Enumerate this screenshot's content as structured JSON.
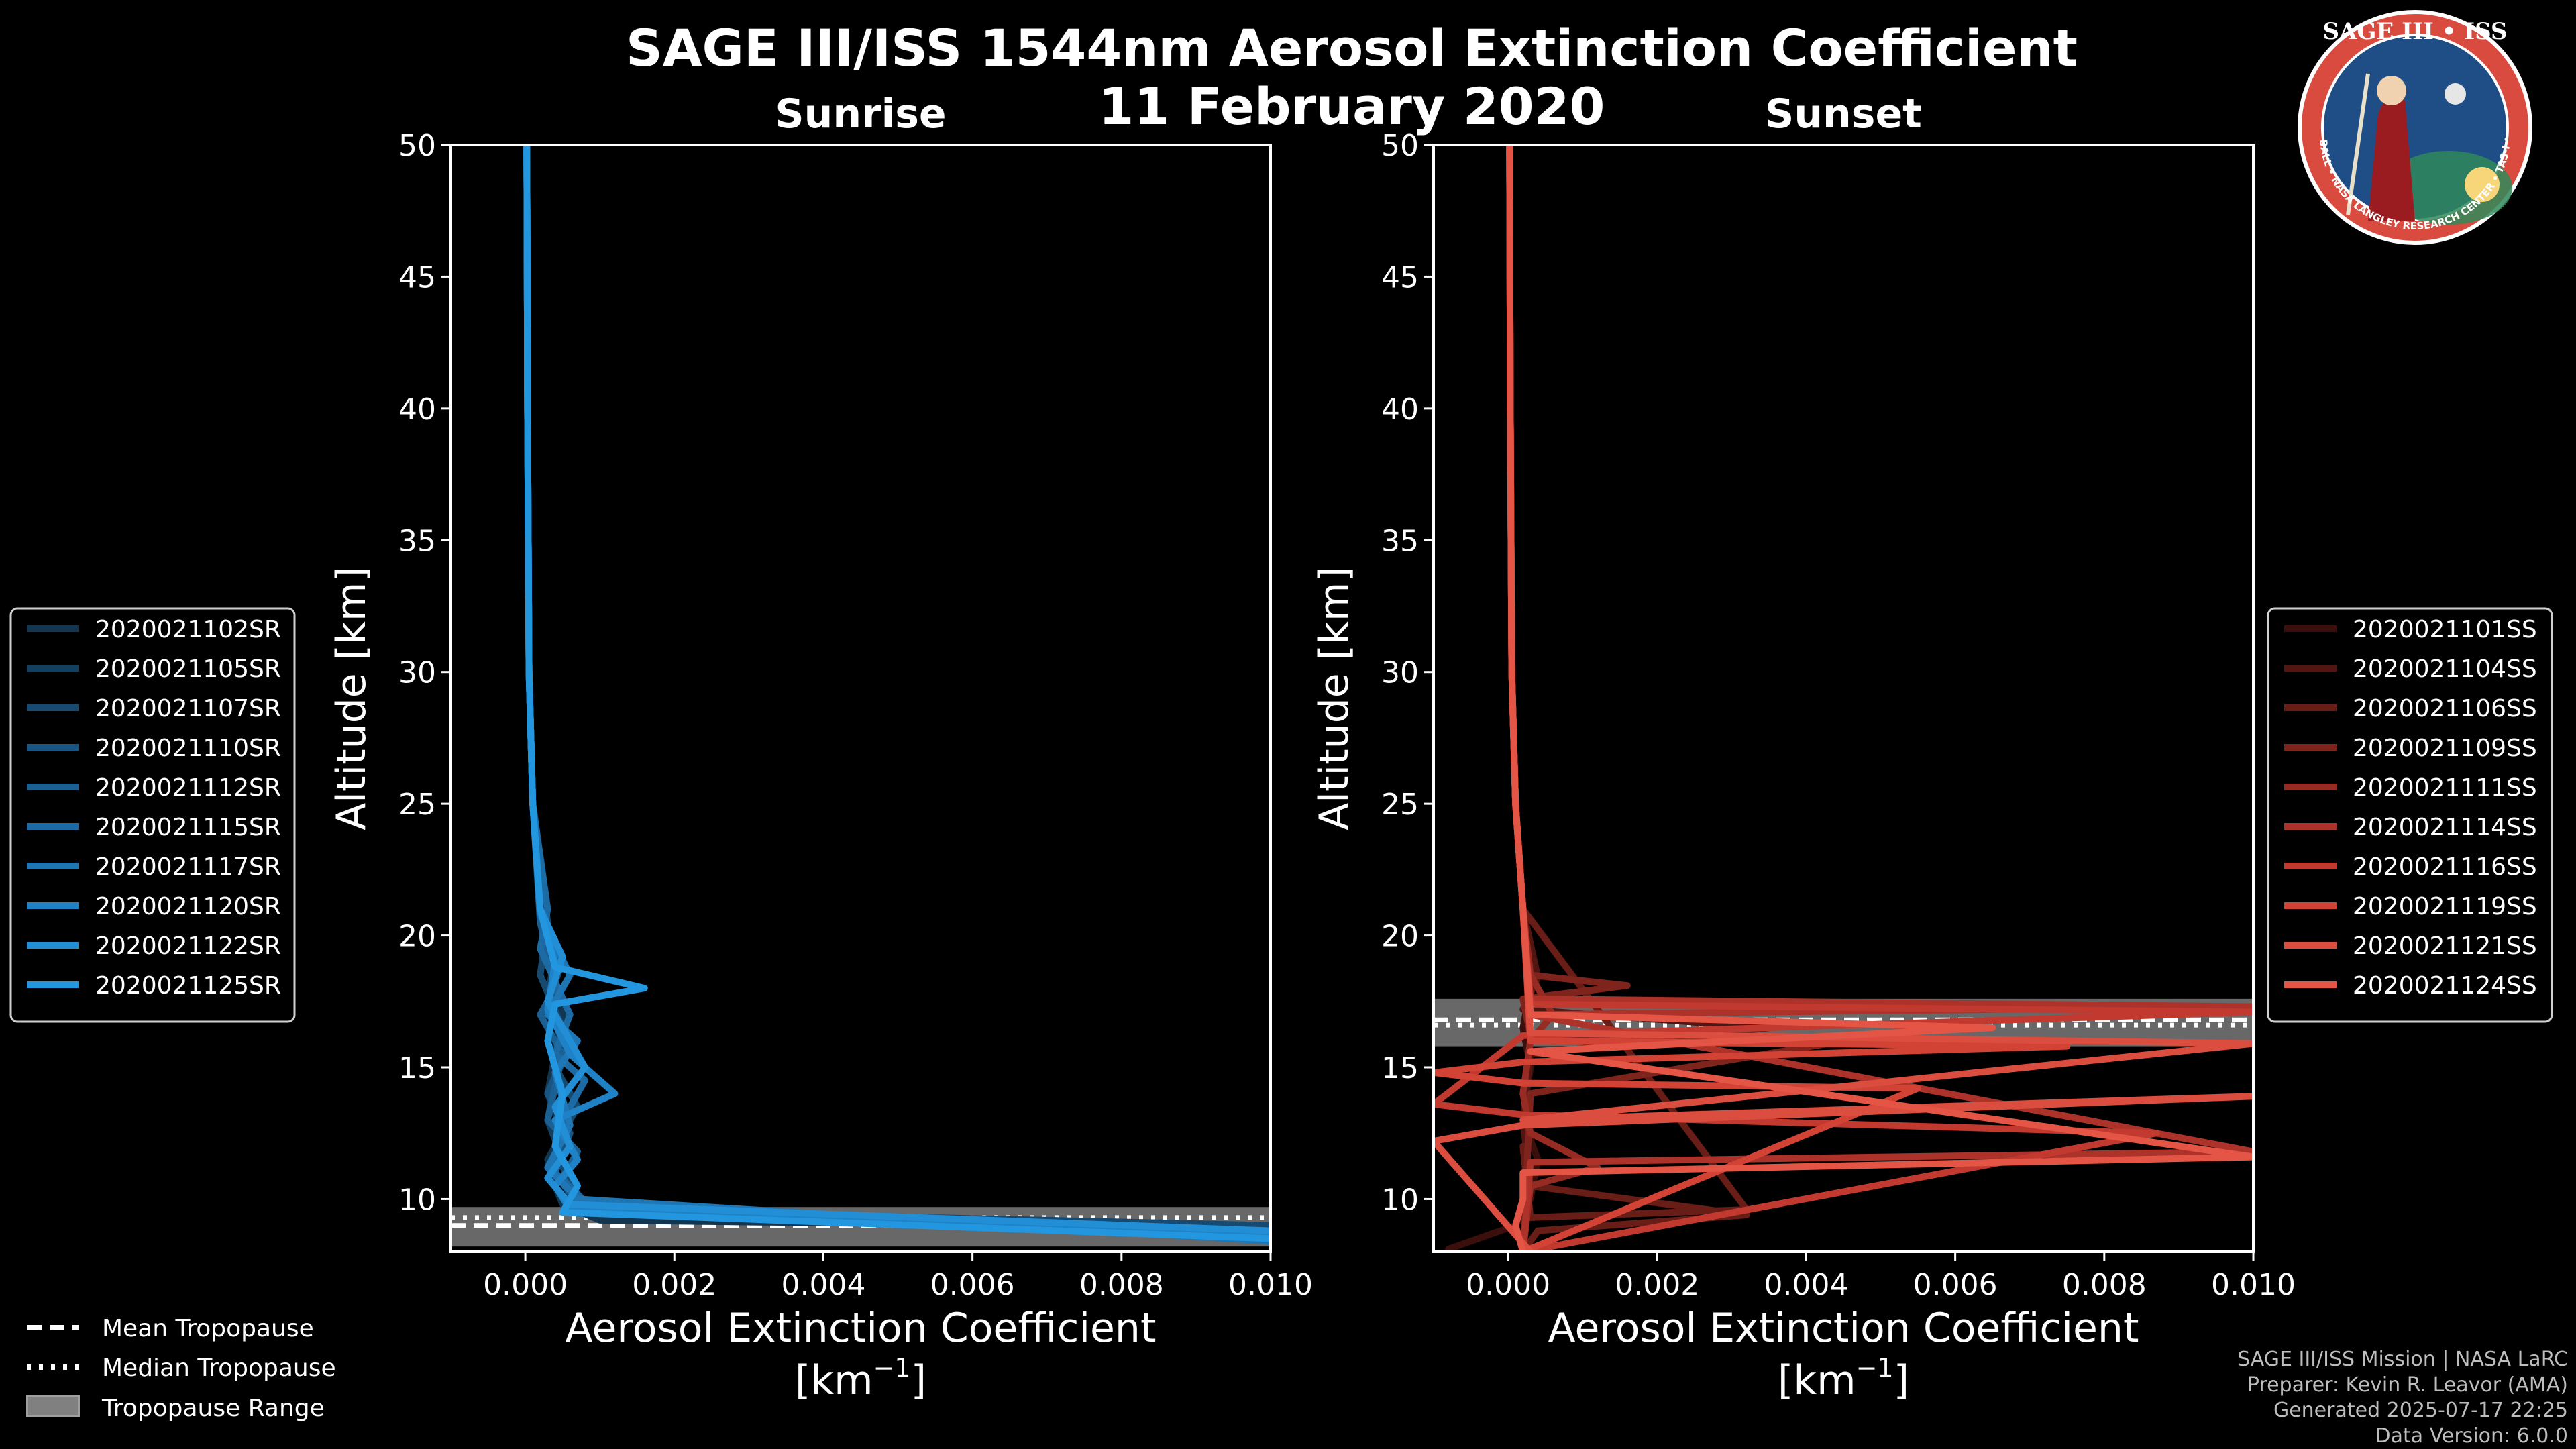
{
  "title": {
    "line1": "SAGE III/ISS 1544nm Aerosol Extinction Coefficient",
    "line2": "11 February 2020"
  },
  "logo": {
    "text": "SAGE III • ISS",
    "ring_text": "BALL • NASA LANGLEY RESEARCH CENTER • TAS-I • ESA",
    "colors": {
      "ring": "#d94a3f",
      "inner": "#1f4e86",
      "text": "#ffffff"
    }
  },
  "credits": [
    "SAGE III/ISS Mission | NASA LaRC",
    "Preparer: Kevin R. Leavor (AMA)",
    "Generated 2025-07-17 22:25",
    "Data Version: 6.0.0"
  ],
  "tropopause_legend": [
    {
      "style": "dashed",
      "label": "Mean Tropopause"
    },
    {
      "style": "dotted",
      "label": "Median Tropopause"
    },
    {
      "style": "range",
      "label": "Tropopause Range"
    }
  ],
  "chart_data": [
    {
      "type": "line",
      "title": "Sunrise",
      "xlabel": "Aerosol Extinction Coefficient",
      "xunit_base": "[km",
      "xunit_exp": "−1",
      "xunit_end": "]",
      "ylabel": "Altitude [km]",
      "xlim": [
        -0.001,
        0.01
      ],
      "ylim": [
        8,
        50
      ],
      "xticks": [
        0.0,
        0.002,
        0.004,
        0.006,
        0.008,
        0.01
      ],
      "xtick_labels": [
        "0.000",
        "0.002",
        "0.004",
        "0.006",
        "0.008",
        "0.010"
      ],
      "yticks": [
        10,
        15,
        20,
        25,
        30,
        35,
        40,
        45,
        50
      ],
      "ytick_labels": [
        "10",
        "15",
        "20",
        "25",
        "30",
        "35",
        "40",
        "45",
        "50"
      ],
      "tropopause": {
        "mean": 9.0,
        "median": 9.3,
        "range": [
          8.2,
          9.7
        ]
      },
      "series": [
        {
          "name": "2020021102SR",
          "color": "#12364f",
          "x": [
            2e-05,
            3e-05,
            5e-05,
            0.0001,
            0.0002,
            0.00035,
            0.0005,
            0.0004,
            0.0003,
            0.0005,
            0.0003,
            0.0004,
            0.0005,
            0.001,
            0.01
          ],
          "y": [
            50,
            40,
            30,
            25,
            21,
            19,
            17,
            15.5,
            14,
            12.5,
            11.5,
            10.5,
            9.8,
            9.2,
            8.9
          ]
        },
        {
          "name": "2020021105SR",
          "color": "#144060",
          "x": [
            2e-05,
            3e-05,
            5e-05,
            0.0001,
            0.0002,
            0.0004,
            0.0003,
            0.0006,
            0.0004,
            0.0003,
            0.0005,
            0.0006,
            0.0008,
            0.01
          ],
          "y": [
            50,
            40,
            30,
            25,
            21,
            19.5,
            17.5,
            16,
            14.5,
            13,
            11.5,
            10.2,
            9.5,
            8.8
          ]
        },
        {
          "name": "2020021107SR",
          "color": "#174a71",
          "x": [
            2e-05,
            3e-05,
            5e-05,
            0.0001,
            0.0003,
            0.0002,
            0.0005,
            0.0004,
            0.0007,
            0.0004,
            0.0006,
            0.0009,
            0.01
          ],
          "y": [
            50,
            40,
            30,
            25,
            20.5,
            18.5,
            16.5,
            15,
            13.5,
            12,
            10.5,
            9.6,
            9.0
          ]
        },
        {
          "name": "2020021110SR",
          "color": "#195582",
          "x": [
            2e-05,
            3e-05,
            5e-05,
            0.0001,
            0.0002,
            0.0005,
            0.0003,
            0.0006,
            0.0003,
            0.0006,
            0.0004,
            0.0007,
            0.01
          ],
          "y": [
            50,
            40,
            30,
            25,
            21,
            19,
            17.5,
            16,
            14,
            12.5,
            11,
            9.8,
            8.7
          ]
        },
        {
          "name": "2020021112SR",
          "color": "#1b6093",
          "x": [
            2e-05,
            3e-05,
            5e-05,
            0.0001,
            0.0002,
            0.0004,
            0.0002,
            0.0005,
            0.0003,
            0.0007,
            0.0005,
            0.0008,
            0.01
          ],
          "y": [
            50,
            40,
            30,
            25,
            20.5,
            18,
            17,
            15.5,
            13,
            11.8,
            10.8,
            9.7,
            8.6
          ]
        },
        {
          "name": "2020021115SR",
          "color": "#1d6ba4",
          "x": [
            2e-05,
            3e-05,
            5e-05,
            0.0001,
            0.0003,
            0.0002,
            0.0006,
            0.0004,
            0.0008,
            0.0005,
            0.0004,
            0.0008,
            0.01
          ],
          "y": [
            50,
            40,
            30,
            25,
            21,
            19.5,
            17,
            15.5,
            14.5,
            13,
            11,
            9.9,
            8.5
          ]
        },
        {
          "name": "2020021117SR",
          "color": "#1f76b5",
          "x": [
            2e-05,
            3e-05,
            5e-05,
            0.0001,
            0.0002,
            0.0006,
            0.0003,
            0.0007,
            0.0004,
            0.0006,
            0.0003,
            0.0007,
            0.01
          ],
          "y": [
            50,
            40,
            30,
            25,
            20.8,
            18.5,
            17,
            16,
            14.8,
            12.8,
            11.2,
            10,
            8.4
          ]
        },
        {
          "name": "2020021120SR",
          "color": "#2082c6",
          "x": [
            2e-05,
            3e-05,
            5e-05,
            0.0001,
            0.0002,
            0.0004,
            0.0003,
            0.0006,
            0.0012,
            0.0004,
            0.0007,
            0.0004,
            0.0006,
            0.01
          ],
          "y": [
            50,
            40,
            30,
            25,
            21,
            19,
            17.2,
            15.5,
            14,
            13,
            11.5,
            10.5,
            9.6,
            8.6
          ]
        },
        {
          "name": "2020021122SR",
          "color": "#218ed5",
          "x": [
            2e-05,
            3e-05,
            5e-05,
            0.0001,
            0.0002,
            0.0005,
            0.0003,
            0.0008,
            0.0004,
            0.0006,
            0.0003,
            0.0006,
            0.01
          ],
          "y": [
            50,
            40,
            30,
            25,
            21,
            19.2,
            17.5,
            15,
            13.5,
            12,
            10.8,
            9.8,
            8.8
          ]
        },
        {
          "name": "2020021125SR",
          "color": "#2396e0",
          "x": [
            2e-05,
            3e-05,
            5e-05,
            0.0001,
            0.0002,
            0.0004,
            0.0016,
            0.0004,
            0.0003,
            0.0005,
            0.0004,
            0.0007,
            0.0005,
            0.01
          ],
          "y": [
            50,
            40,
            30,
            25,
            21,
            18.8,
            18,
            17.4,
            16,
            14,
            12,
            10.5,
            9.5,
            8.5
          ]
        }
      ]
    },
    {
      "type": "line",
      "title": "Sunset",
      "xlabel": "Aerosol Extinction Coefficient",
      "xunit_base": "[km",
      "xunit_exp": "−1",
      "xunit_end": "]",
      "ylabel": "Altitude [km]",
      "xlim": [
        -0.001,
        0.01
      ],
      "ylim": [
        8,
        50
      ],
      "xticks": [
        0.0,
        0.002,
        0.004,
        0.006,
        0.008,
        0.01
      ],
      "xtick_labels": [
        "0.000",
        "0.002",
        "0.004",
        "0.006",
        "0.008",
        "0.010"
      ],
      "yticks": [
        10,
        15,
        20,
        25,
        30,
        35,
        40,
        45,
        50
      ],
      "ytick_labels": [
        "10",
        "15",
        "20",
        "25",
        "30",
        "35",
        "40",
        "45",
        "50"
      ],
      "tropopause": {
        "mean": 16.8,
        "median": 16.6,
        "range": [
          15.8,
          17.6
        ]
      },
      "series": [
        {
          "name": "2020021101SS",
          "color": "#3a0f0c",
          "x": [
            2e-05,
            3e-05,
            5e-05,
            0.0001,
            0.0002,
            0.0003,
            0.0002,
            0.0003,
            0.0002,
            0.0004,
            0.0003,
            0.0001,
            -0.0003,
            -0.0008
          ],
          "y": [
            50,
            40,
            30,
            25,
            21,
            18,
            16.5,
            15,
            13,
            11.5,
            10,
            9,
            8.6,
            8.1
          ]
        },
        {
          "name": "2020021104SS",
          "color": "#511612",
          "x": [
            2e-05,
            3e-05,
            5e-05,
            0.0001,
            0.0002,
            0.0004,
            0.0002,
            0.0035,
            0.0003,
            0.0002,
            0.0003,
            0.0002
          ],
          "y": [
            50,
            40,
            30,
            25,
            21,
            18.4,
            17.2,
            16.5,
            15.5,
            13,
            10.5,
            8
          ]
        },
        {
          "name": "2020021106SS",
          "color": "#681d17",
          "x": [
            2e-05,
            3e-05,
            5e-05,
            0.0001,
            0.0002,
            0.0032,
            0.0003,
            0.0002,
            0.0003,
            0.0032,
            0.0004,
            0.0002
          ],
          "y": [
            50,
            40,
            30,
            25,
            21,
            9.6,
            9.3,
            12,
            10.5,
            9.4,
            8.8,
            8
          ]
        },
        {
          "name": "2020021109SS",
          "color": "#7f241d",
          "x": [
            2e-05,
            3e-05,
            5e-05,
            0.0001,
            0.0002,
            0.0003,
            0.0016,
            0.0002,
            0.0003,
            0.0045,
            0.0003,
            0.0002
          ],
          "y": [
            50,
            40,
            30,
            25,
            21,
            18.5,
            18.1,
            17.6,
            16.2,
            16.0,
            14,
            8
          ]
        },
        {
          "name": "2020021111SS",
          "color": "#962b23",
          "x": [
            2e-05,
            3e-05,
            5e-05,
            0.0001,
            0.0002,
            0.0003,
            0.0006,
            0.0003,
            0.0002,
            0.0003,
            0.0012,
            0.0003,
            0.0002
          ],
          "y": [
            50,
            40,
            30,
            25,
            21,
            18.5,
            17,
            16,
            14,
            12.5,
            11.2,
            10.5,
            8
          ]
        },
        {
          "name": "2020021114SS",
          "color": "#ad3229",
          "x": [
            2e-05,
            3e-05,
            5e-05,
            0.0001,
            0.0002,
            0.0003,
            0.01,
            0.0003,
            0.01,
            0.0003,
            0.0002
          ],
          "y": [
            50,
            40,
            30,
            25,
            21,
            17.6,
            17.3,
            17.0,
            11.8,
            11.4,
            8
          ]
        },
        {
          "name": "2020021116SS",
          "color": "#c1392f",
          "x": [
            2e-05,
            3e-05,
            5e-05,
            0.0001,
            0.0002,
            0.0003,
            0.01,
            0.0002,
            -0.001,
            0.0002,
            0.0087,
            0.0002
          ],
          "y": [
            50,
            40,
            30,
            25,
            21,
            17.4,
            17.1,
            16.2,
            13.6,
            13.2,
            12.5,
            8
          ]
        },
        {
          "name": "2020021119SS",
          "color": "#d24336",
          "x": [
            2e-05,
            3e-05,
            5e-05,
            0.0001,
            0.0002,
            0.0003,
            0.0075,
            0.0002,
            -0.001,
            0.0002,
            0.0055,
            0.0002
          ],
          "y": [
            50,
            40,
            30,
            25,
            21,
            16.0,
            15.8,
            15.2,
            14.8,
            14.4,
            14.2,
            8
          ]
        },
        {
          "name": "2020021121SS",
          "color": "#db4d3f",
          "x": [
            2e-05,
            3e-05,
            5e-05,
            0.0001,
            0.0002,
            0.0003,
            0.01,
            0.0002,
            0.01,
            0.0002,
            -0.001,
            0.0003
          ],
          "y": [
            50,
            40,
            30,
            25,
            21,
            16.3,
            15.9,
            13.0,
            13.9,
            12.8,
            12.2,
            8
          ]
        },
        {
          "name": "2020021124SS",
          "color": "#e45546",
          "x": [
            2e-05,
            3e-05,
            5e-05,
            0.0001,
            0.0002,
            0.0003,
            0.0065,
            0.0003,
            0.01,
            0.0002,
            0.0002,
            0.0001,
            0.0002
          ],
          "y": [
            50,
            40,
            30,
            25,
            21,
            17.0,
            16.5,
            15.6,
            11.6,
            11.0,
            10.0,
            9.0,
            8
          ]
        }
      ]
    }
  ]
}
